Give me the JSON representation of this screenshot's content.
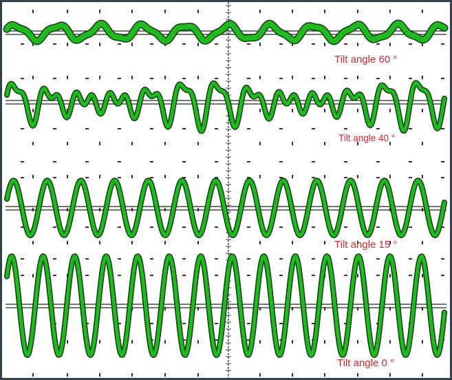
{
  "colors": {
    "trace": "#22b822",
    "trace_edge": "#0d3d0d",
    "label": "#d42a2a",
    "frame": "#34404c",
    "grid_dots": "#333333"
  },
  "chart_data": {
    "type": "line",
    "grid": true,
    "traces": [
      {
        "label": "Tilt angle 60 °",
        "tilt_deg": 60,
        "relative_amplitude": 0.09,
        "cycles_on_screen": 10.3,
        "beat": false
      },
      {
        "label": "Tilt angle 40 °",
        "tilt_deg": 40,
        "relative_amplitude": 0.45,
        "cycles_on_screen": 13,
        "beat": true
      },
      {
        "label": "Tilt angle 15 °",
        "tilt_deg": 15,
        "relative_amplitude": 0.75,
        "cycles_on_screen": 13,
        "beat": false
      },
      {
        "label": "Tilt angle 0 °",
        "tilt_deg": 0,
        "relative_amplitude": 1.0,
        "cycles_on_screen": 13.9,
        "beat": false
      }
    ]
  }
}
